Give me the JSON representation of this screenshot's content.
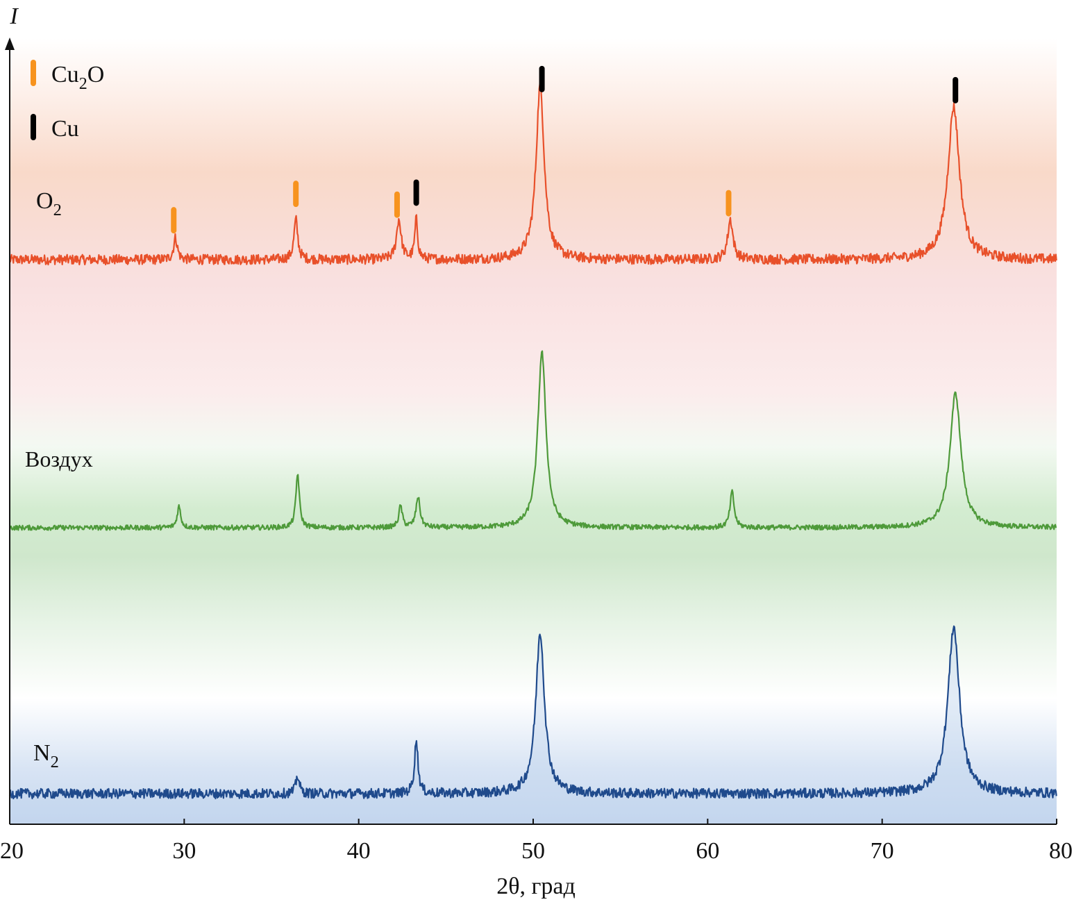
{
  "chart_data": {
    "type": "line",
    "title": "",
    "xlabel": "2θ, град",
    "ylabel": "I",
    "xlim": [
      20,
      80
    ],
    "xticks": [
      20,
      30,
      40,
      50,
      60,
      70,
      80
    ],
    "grid": false,
    "legend": {
      "position": "top-left",
      "items": [
        {
          "label_main": "Cu",
          "label_sub": "2",
          "label_tail": "O",
          "color": "#f7931e",
          "phase": "Cu2O"
        },
        {
          "label_main": "Cu",
          "label_sub": "",
          "label_tail": "",
          "color": "#000000",
          "phase": "Cu"
        }
      ]
    },
    "series": [
      {
        "name": "O2",
        "label_main": "O",
        "label_sub": "2",
        "color": "#e8502a",
        "band_color": "#f8c8b4",
        "noise": 1.0,
        "baseline": 0,
        "peaks": [
          {
            "x": 29.5,
            "h": 0.12,
            "w": 0.13
          },
          {
            "x": 36.4,
            "h": 0.22,
            "w": 0.13
          },
          {
            "x": 42.3,
            "h": 0.22,
            "w": 0.16
          },
          {
            "x": 43.3,
            "h": 0.22,
            "w": 0.1
          },
          {
            "x": 50.4,
            "h": 0.96,
            "w": 0.28
          },
          {
            "x": 61.3,
            "h": 0.22,
            "w": 0.18
          },
          {
            "x": 74.1,
            "h": 0.84,
            "w": 0.4
          }
        ]
      },
      {
        "name": "Воздух",
        "label_main": "Воздух",
        "label_sub": "",
        "color": "#4e9a3a",
        "band_color": "#b4dcb0",
        "noise": 0.5,
        "baseline": 0,
        "peaks": [
          {
            "x": 29.7,
            "h": 0.12,
            "w": 0.12
          },
          {
            "x": 36.5,
            "h": 0.3,
            "w": 0.12
          },
          {
            "x": 42.4,
            "h": 0.12,
            "w": 0.12
          },
          {
            "x": 43.4,
            "h": 0.17,
            "w": 0.14
          },
          {
            "x": 50.5,
            "h": 0.98,
            "w": 0.28
          },
          {
            "x": 61.4,
            "h": 0.2,
            "w": 0.14
          },
          {
            "x": 74.2,
            "h": 0.75,
            "w": 0.38
          }
        ]
      },
      {
        "name": "N2",
        "label_main": "N",
        "label_sub": "2",
        "color": "#1f4a8c",
        "band_color": "#c0d4ee",
        "noise": 1.0,
        "baseline": 0,
        "peaks": [
          {
            "x": 36.5,
            "h": 0.1,
            "w": 0.12
          },
          {
            "x": 43.3,
            "h": 0.3,
            "w": 0.12
          },
          {
            "x": 50.4,
            "h": 0.9,
            "w": 0.3
          },
          {
            "x": 74.1,
            "h": 0.93,
            "w": 0.4
          }
        ]
      }
    ],
    "phase_markers": [
      {
        "x": 29.4,
        "phase": "Cu2O"
      },
      {
        "x": 36.4,
        "phase": "Cu2O"
      },
      {
        "x": 42.2,
        "phase": "Cu2O"
      },
      {
        "x": 43.3,
        "phase": "Cu"
      },
      {
        "x": 50.5,
        "phase": "Cu"
      },
      {
        "x": 61.2,
        "phase": "Cu2O"
      },
      {
        "x": 74.2,
        "phase": "Cu"
      }
    ]
  }
}
